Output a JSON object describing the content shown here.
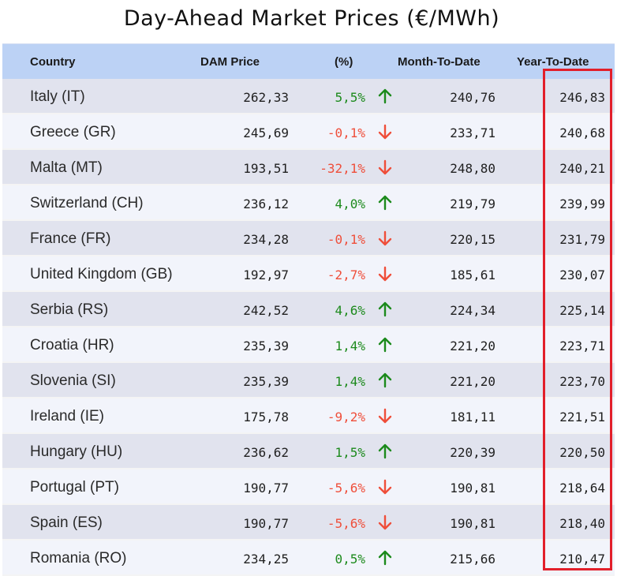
{
  "title": "Day-Ahead Market Prices (€/MWh)",
  "colors": {
    "header_bg": "#bcd2f5",
    "positive": "#1c8a1c",
    "negative": "#ef4e3a",
    "highlight_box": "#e21f2a"
  },
  "columns": {
    "country": "Country",
    "dam": "DAM Price",
    "pct": "(%)",
    "mtd": "Month-To-Date",
    "ytd": "Year-To-Date"
  },
  "rows": [
    {
      "country": "Italy (IT)",
      "dam": "262,33",
      "pct": "5,5%",
      "dir": "up",
      "mtd": "240,76",
      "ytd": "246,83"
    },
    {
      "country": "Greece (GR)",
      "dam": "245,69",
      "pct": "-0,1%",
      "dir": "down",
      "mtd": "233,71",
      "ytd": "240,68"
    },
    {
      "country": "Malta (MT)",
      "dam": "193,51",
      "pct": "-32,1%",
      "dir": "down",
      "mtd": "248,80",
      "ytd": "240,21"
    },
    {
      "country": "Switzerland (CH)",
      "dam": "236,12",
      "pct": "4,0%",
      "dir": "up",
      "mtd": "219,79",
      "ytd": "239,99"
    },
    {
      "country": "France (FR)",
      "dam": "234,28",
      "pct": "-0,1%",
      "dir": "down",
      "mtd": "220,15",
      "ytd": "231,79"
    },
    {
      "country": "United Kingdom (GB)",
      "dam": "192,97",
      "pct": "-2,7%",
      "dir": "down",
      "mtd": "185,61",
      "ytd": "230,07"
    },
    {
      "country": "Serbia (RS)",
      "dam": "242,52",
      "pct": "4,6%",
      "dir": "up",
      "mtd": "224,34",
      "ytd": "225,14"
    },
    {
      "country": "Croatia (HR)",
      "dam": "235,39",
      "pct": "1,4%",
      "dir": "up",
      "mtd": "221,20",
      "ytd": "223,71"
    },
    {
      "country": "Slovenia (SI)",
      "dam": "235,39",
      "pct": "1,4%",
      "dir": "up",
      "mtd": "221,20",
      "ytd": "223,70"
    },
    {
      "country": "Ireland (IE)",
      "dam": "175,78",
      "pct": "-9,2%",
      "dir": "down",
      "mtd": "181,11",
      "ytd": "221,51"
    },
    {
      "country": "Hungary (HU)",
      "dam": "236,62",
      "pct": "1,5%",
      "dir": "up",
      "mtd": "220,39",
      "ytd": "220,50"
    },
    {
      "country": "Portugal (PT)",
      "dam": "190,77",
      "pct": "-5,6%",
      "dir": "down",
      "mtd": "190,81",
      "ytd": "218,64"
    },
    {
      "country": "Spain (ES)",
      "dam": "190,77",
      "pct": "-5,6%",
      "dir": "down",
      "mtd": "190,81",
      "ytd": "218,40"
    },
    {
      "country": "Romania (RO)",
      "dam": "234,25",
      "pct": "0,5%",
      "dir": "up",
      "mtd": "215,66",
      "ytd": "210,47"
    }
  ]
}
